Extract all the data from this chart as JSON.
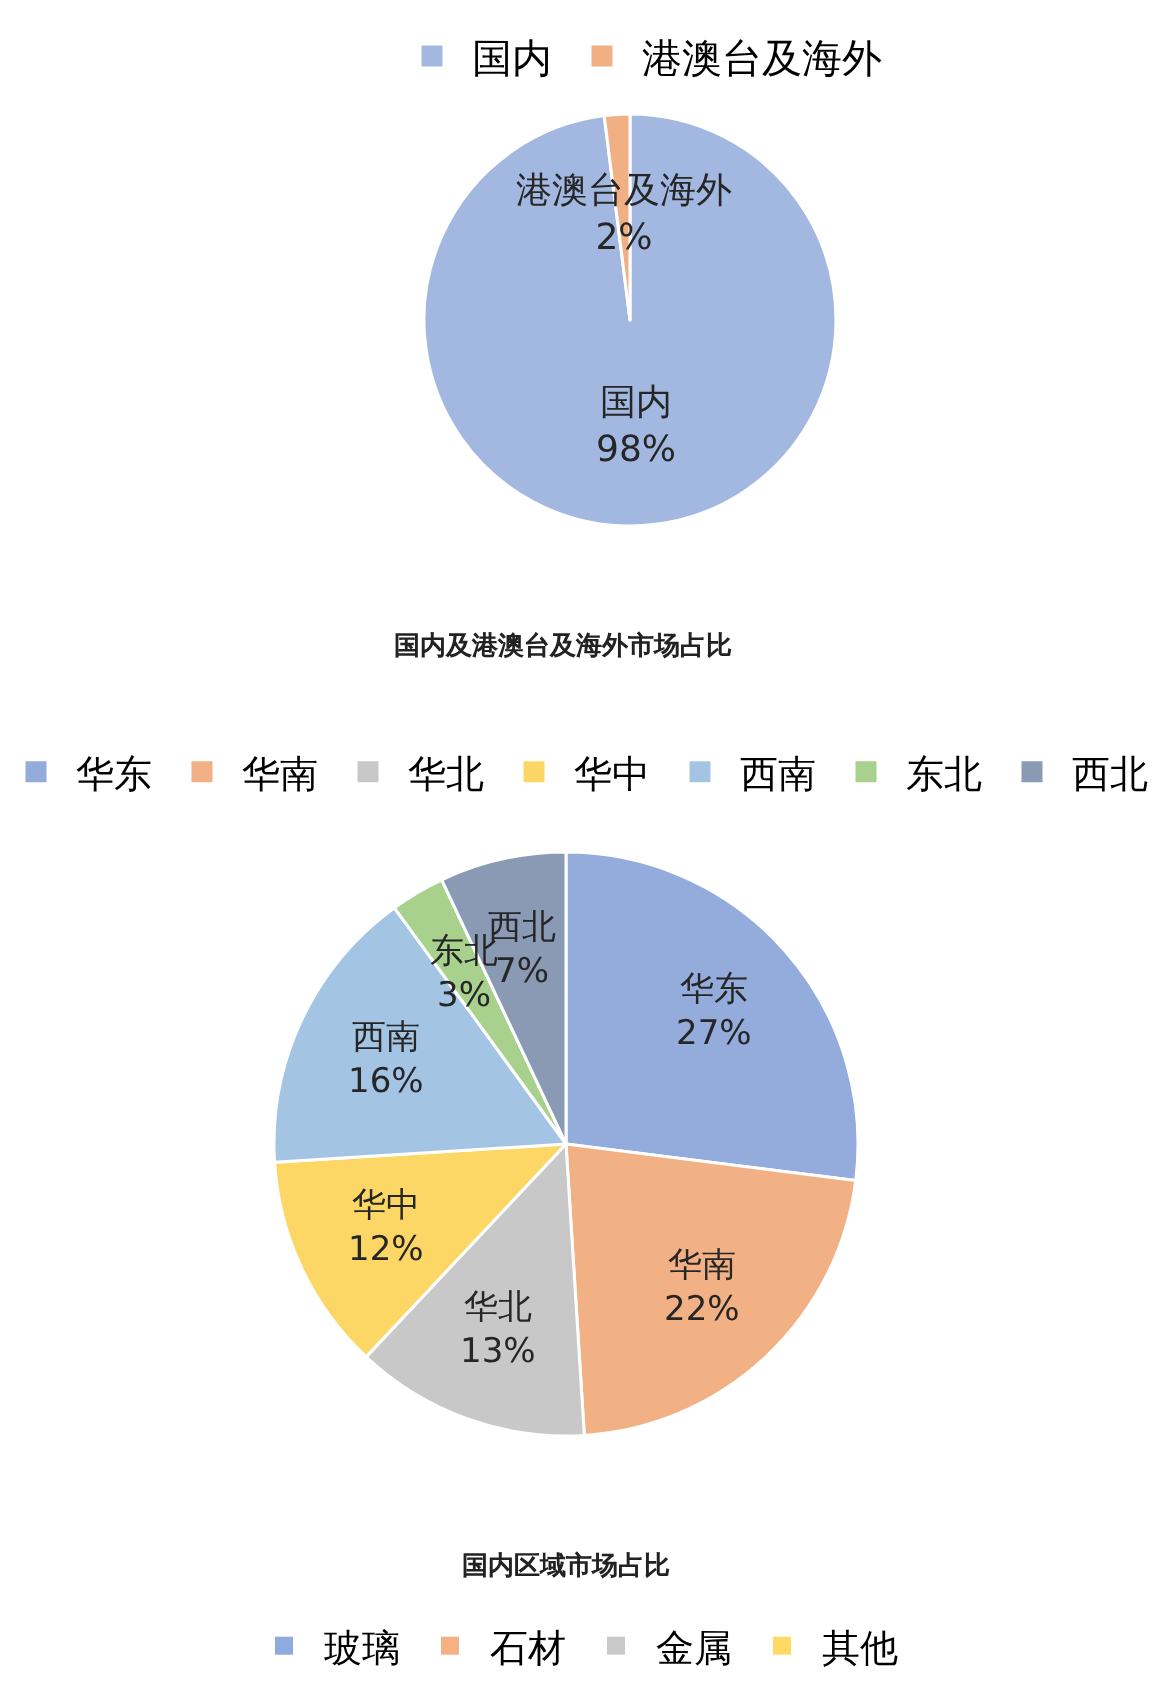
{
  "chart_data": [
    {
      "type": "pie",
      "title": "国内及港澳台及海外市场占比",
      "categories": [
        "国内",
        "港澳台及海外"
      ],
      "values": [
        98,
        2
      ],
      "colors": [
        "#a3b8e0",
        "#f0b084"
      ],
      "value_labels": [
        "98%",
        "2%"
      ],
      "legend": "top"
    },
    {
      "type": "pie",
      "title": "国内区域市场占比",
      "categories": [
        "华东",
        "华南",
        "华北",
        "华中",
        "西南",
        "东北",
        "西北"
      ],
      "values": [
        27,
        22,
        13,
        12,
        16,
        3,
        7
      ],
      "colors": [
        "#94acdc",
        "#f2b185",
        "#c8c8c8",
        "#fcd766",
        "#a4c4e4",
        "#a9d18e",
        "#8a9ab4"
      ],
      "value_labels": [
        "27%",
        "22%",
        "13%",
        "12%",
        "16%",
        "3%",
        "7%"
      ],
      "legend": "top"
    },
    {
      "type": "other",
      "series": [
        {
          "name": "玻璃",
          "color": "#8faadc"
        },
        {
          "name": "石材",
          "color": "#f4b183"
        },
        {
          "name": "金属",
          "color": "#c9c9c9"
        },
        {
          "name": "其他",
          "color": "#ffd966"
        }
      ],
      "legend": "top"
    }
  ]
}
